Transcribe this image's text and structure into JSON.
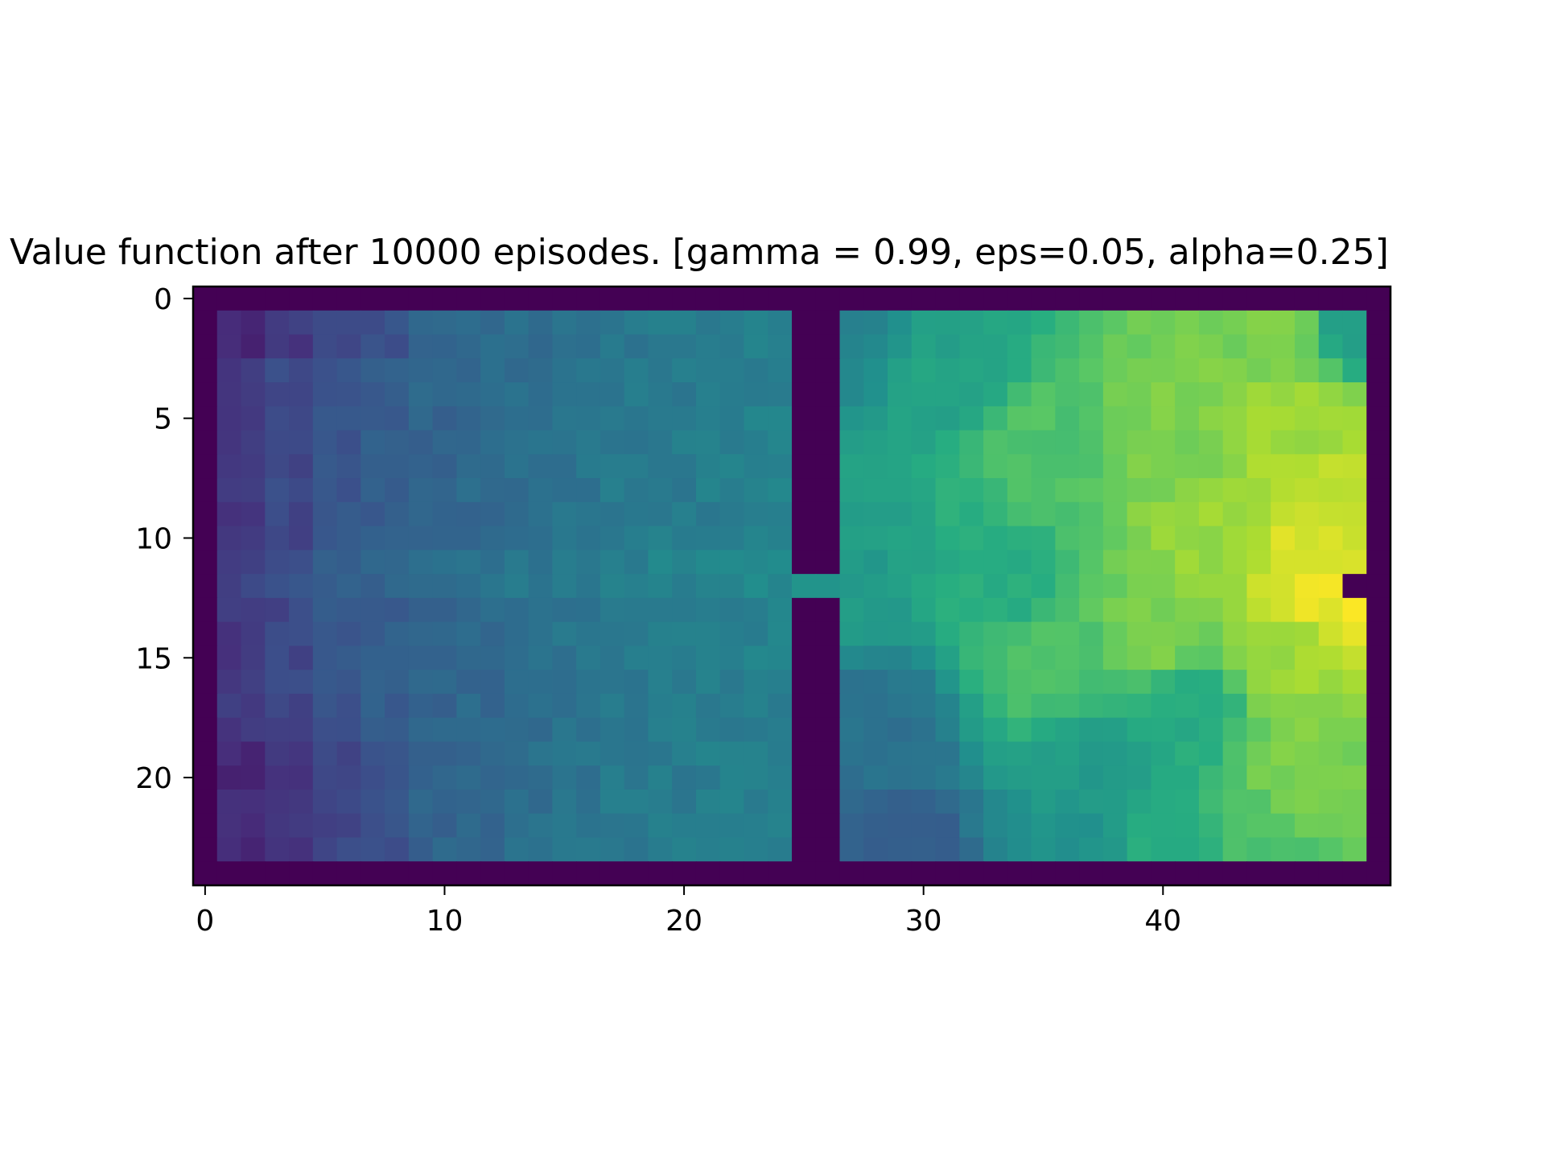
{
  "chart_data": {
    "type": "heatmap",
    "title": "Value function after 10000 episodes. [gamma = 0.99, eps=0.05, alpha=0.25]",
    "xlabel": "",
    "ylabel": "",
    "colormap": "viridis",
    "x_ticks": [
      {
        "value": 0,
        "label": "0"
      },
      {
        "value": 10,
        "label": "10"
      },
      {
        "value": 20,
        "label": "20"
      },
      {
        "value": 30,
        "label": "30"
      },
      {
        "value": 40,
        "label": "40"
      }
    ],
    "y_ticks": [
      {
        "value": 0,
        "label": "0"
      },
      {
        "value": 5,
        "label": "5"
      },
      {
        "value": 10,
        "label": "10"
      },
      {
        "value": 15,
        "label": "15"
      },
      {
        "value": 20,
        "label": "20"
      }
    ],
    "xlim": [
      -0.5,
      49.5
    ],
    "ylim": [
      24.5,
      -0.5
    ],
    "grid_shape": {
      "rows": 25,
      "cols": 50
    },
    "walls": {
      "outer": true,
      "divider_cols": [
        25,
        26
      ],
      "doorway_row": 12,
      "goal_notch": {
        "row": 12,
        "col": 48
      }
    },
    "value_range": [
      0,
      1
    ],
    "values_note": "approximate normalized values",
    "left_room_value_profile": [
      0.17,
      0.22,
      0.27,
      0.3,
      0.33,
      0.35,
      0.37,
      0.39,
      0.41,
      0.42,
      0.43,
      0.44
    ],
    "right_room_value_anchors": [
      {
        "row": 12,
        "col": 47,
        "value": 0.98
      },
      {
        "row": 11,
        "col": 46,
        "value": 0.95
      },
      {
        "row": 9,
        "col": 47,
        "value": 0.92
      },
      {
        "row": 5,
        "col": 46,
        "value": 0.86
      },
      {
        "row": 1,
        "col": 45,
        "value": 0.8
      },
      {
        "row": 1,
        "col": 48,
        "value": 0.55
      },
      {
        "row": 15,
        "col": 45,
        "value": 0.86
      },
      {
        "row": 20,
        "col": 46,
        "value": 0.8
      },
      {
        "row": 23,
        "col": 44,
        "value": 0.72
      },
      {
        "row": 23,
        "col": 40,
        "value": 0.62
      },
      {
        "row": 17,
        "col": 41,
        "value": 0.62
      },
      {
        "row": 20,
        "col": 37,
        "value": 0.55
      },
      {
        "row": 23,
        "col": 36,
        "value": 0.5
      },
      {
        "row": 23,
        "col": 29,
        "value": 0.3
      },
      {
        "row": 18,
        "col": 28,
        "value": 0.38
      },
      {
        "row": 1,
        "col": 27,
        "value": 0.45
      },
      {
        "row": 12,
        "col": 27,
        "value": 0.55
      },
      {
        "row": 12,
        "col": 33,
        "value": 0.63
      },
      {
        "row": 6,
        "col": 35,
        "value": 0.72
      },
      {
        "row": 3,
        "col": 31,
        "value": 0.58
      },
      {
        "row": 15,
        "col": 35,
        "value": 0.72
      },
      {
        "row": 14,
        "col": 40,
        "value": 0.8
      },
      {
        "row": 10,
        "col": 42,
        "value": 0.85
      },
      {
        "row": 6,
        "col": 40,
        "value": 0.8
      }
    ]
  }
}
